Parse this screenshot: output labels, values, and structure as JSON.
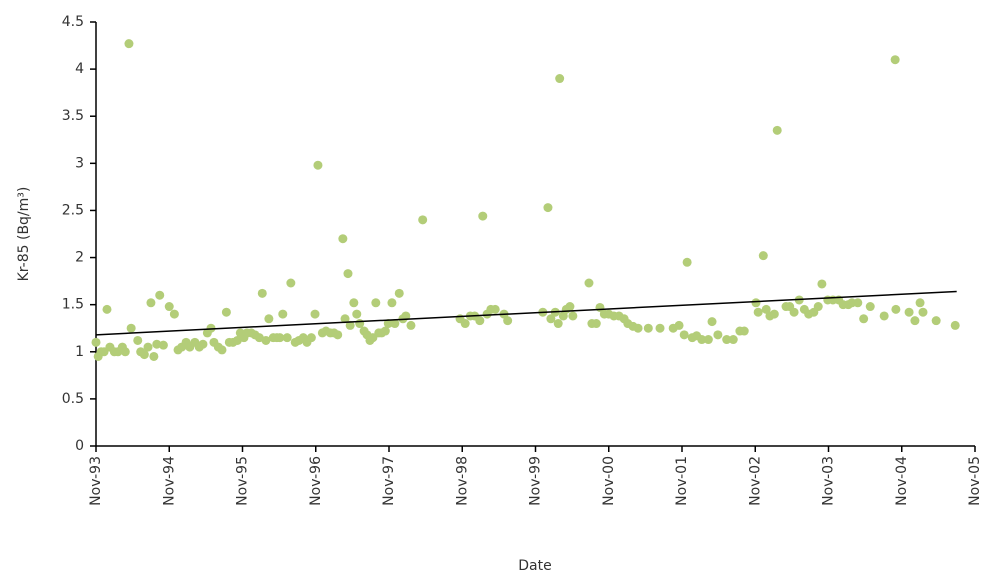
{
  "chart_data": {
    "type": "scatter",
    "x_label": "Date",
    "y_label": "Kr-85 (Bq/m³)",
    "color": "#b3cd78",
    "x": [
      1993.83,
      1993.86,
      1993.9,
      1993.94,
      1993.98,
      1994.02,
      1994.08,
      1994.13,
      1994.19,
      1994.23,
      1994.28,
      1994.31,
      1994.4,
      1994.44,
      1994.49,
      1994.54,
      1994.58,
      1994.62,
      1994.66,
      1994.7,
      1994.75,
      1994.83,
      1994.9,
      1994.95,
      1995.0,
      1995.06,
      1995.11,
      1995.18,
      1995.24,
      1995.29,
      1995.35,
      1995.4,
      1995.44,
      1995.5,
      1995.55,
      1995.61,
      1995.65,
      1995.7,
      1995.76,
      1995.8,
      1995.85,
      1995.89,
      1995.95,
      1996.0,
      1996.06,
      1996.1,
      1996.15,
      1996.19,
      1996.25,
      1996.3,
      1996.34,
      1996.38,
      1996.44,
      1996.49,
      1996.55,
      1996.6,
      1996.66,
      1996.71,
      1996.77,
      1996.82,
      1996.86,
      1996.92,
      1996.97,
      1997.03,
      1997.08,
      1997.13,
      1997.2,
      1997.23,
      1997.27,
      1997.3,
      1997.35,
      1997.39,
      1997.43,
      1997.49,
      1997.53,
      1997.57,
      1997.61,
      1997.65,
      1997.69,
      1997.73,
      1997.78,
      1997.82,
      1997.87,
      1997.91,
      1997.97,
      1998.02,
      1998.06,
      1998.13,
      1998.29,
      1998.8,
      1998.87,
      1998.94,
      1999.0,
      1999.07,
      1999.11,
      1999.17,
      1999.22,
      1999.28,
      1999.4,
      1999.45,
      1999.93,
      2000.0,
      2000.04,
      2000.1,
      2000.14,
      2000.16,
      2000.21,
      2000.25,
      2000.3,
      2000.34,
      2000.56,
      2000.6,
      2000.66,
      2000.71,
      2000.77,
      2000.83,
      2000.9,
      2000.97,
      2001.04,
      2001.09,
      2001.16,
      2001.23,
      2001.37,
      2001.53,
      2001.71,
      2001.79,
      2001.86,
      2001.9,
      2001.97,
      2002.03,
      2002.1,
      2002.19,
      2002.24,
      2002.32,
      2002.44,
      2002.53,
      2002.62,
      2002.68,
      2002.84,
      2002.87,
      2002.94,
      2002.98,
      2003.03,
      2003.09,
      2003.13,
      2003.25,
      2003.3,
      2003.36,
      2003.43,
      2003.5,
      2003.56,
      2003.63,
      2003.69,
      2003.74,
      2003.82,
      2003.89,
      2003.97,
      2004.03,
      2004.1,
      2004.15,
      2004.23,
      2004.31,
      2004.4,
      2004.59,
      2004.74,
      2004.75,
      2004.93,
      2005.01,
      2005.08,
      2005.12,
      2005.3,
      2005.56
    ],
    "values": [
      1.1,
      0.95,
      1.0,
      1.0,
      1.45,
      1.05,
      1.0,
      1.0,
      1.05,
      1.0,
      4.27,
      1.25,
      1.12,
      1.0,
      0.97,
      1.05,
      1.52,
      0.95,
      1.08,
      1.6,
      1.07,
      1.48,
      1.4,
      1.02,
      1.05,
      1.1,
      1.05,
      1.1,
      1.05,
      1.08,
      1.2,
      1.25,
      1.1,
      1.05,
      1.02,
      1.42,
      1.1,
      1.1,
      1.12,
      1.2,
      1.15,
      1.2,
      1.2,
      1.18,
      1.15,
      1.62,
      1.12,
      1.35,
      1.15,
      1.15,
      1.15,
      1.4,
      1.15,
      1.73,
      1.1,
      1.12,
      1.15,
      1.1,
      1.15,
      1.4,
      2.98,
      1.2,
      1.22,
      1.2,
      1.2,
      1.18,
      2.2,
      1.35,
      1.83,
      1.28,
      1.52,
      1.4,
      1.3,
      1.22,
      1.18,
      1.12,
      1.15,
      1.52,
      1.2,
      1.2,
      1.22,
      1.3,
      1.52,
      1.3,
      1.62,
      1.35,
      1.38,
      1.28,
      2.4,
      1.35,
      1.3,
      1.38,
      1.38,
      1.33,
      2.44,
      1.4,
      1.45,
      1.45,
      1.4,
      1.33,
      1.42,
      2.53,
      1.35,
      1.42,
      1.3,
      3.9,
      1.38,
      1.45,
      1.48,
      1.38,
      1.73,
      1.3,
      1.3,
      1.47,
      1.4,
      1.4,
      1.38,
      1.38,
      1.35,
      1.3,
      1.27,
      1.25,
      1.25,
      1.25,
      1.25,
      1.28,
      1.18,
      1.95,
      1.15,
      1.17,
      1.13,
      1.13,
      1.32,
      1.18,
      1.13,
      1.13,
      1.22,
      1.22,
      1.52,
      1.42,
      2.02,
      1.45,
      1.38,
      1.4,
      3.35,
      1.48,
      1.48,
      1.42,
      1.55,
      1.45,
      1.4,
      1.42,
      1.48,
      1.72,
      1.55,
      1.55,
      1.55,
      1.5,
      1.5,
      1.52,
      1.52,
      1.35,
      1.48,
      1.38,
      4.1,
      1.45,
      1.42,
      1.33,
      1.52,
      1.42,
      1.33,
      1.28
    ],
    "trendline": {
      "x": [
        1993.83,
        2005.58
      ],
      "values": [
        1.18,
        1.64
      ]
    },
    "xlim": [
      1993.83,
      2005.83
    ],
    "xticks": [
      {
        "value": 1993.83,
        "label": "Nov-93"
      },
      {
        "value": 1994.83,
        "label": "Nov-94"
      },
      {
        "value": 1995.83,
        "label": "Nov-95"
      },
      {
        "value": 1996.83,
        "label": "Nov-96"
      },
      {
        "value": 1997.83,
        "label": "Nov-97"
      },
      {
        "value": 1998.83,
        "label": "Nov-98"
      },
      {
        "value": 1999.83,
        "label": "Nov-99"
      },
      {
        "value": 2000.83,
        "label": "Nov-00"
      },
      {
        "value": 2001.83,
        "label": "Nov-01"
      },
      {
        "value": 2002.83,
        "label": "Nov-02"
      },
      {
        "value": 2003.83,
        "label": "Nov-03"
      },
      {
        "value": 2004.83,
        "label": "Nov-04"
      },
      {
        "value": 2005.83,
        "label": "Nov-05"
      }
    ],
    "ylim": [
      0,
      4.5
    ],
    "yticks": [
      0,
      0.5,
      1,
      1.5,
      2,
      2.5,
      3,
      3.5,
      4,
      4.5
    ],
    "grid": false
  }
}
